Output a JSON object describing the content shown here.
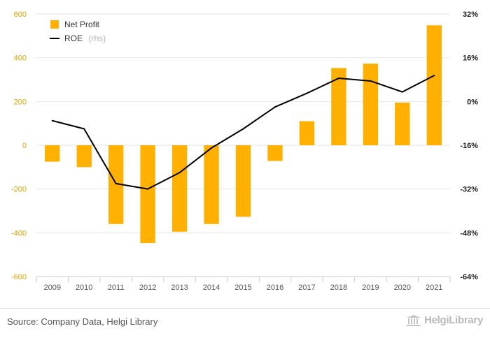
{
  "chart_data": {
    "type": "bar",
    "categories": [
      "2009",
      "2010",
      "2011",
      "2012",
      "2013",
      "2014",
      "2015",
      "2016",
      "2017",
      "2018",
      "2019",
      "2020",
      "2021"
    ],
    "series": [
      {
        "name": "Net Profit",
        "type": "bar",
        "axis": "left",
        "color": "#ffb000",
        "values": [
          -75,
          -100,
          -360,
          -447,
          -395,
          -360,
          -327,
          -72,
          110,
          353,
          373,
          195,
          548
        ]
      },
      {
        "name": "ROE",
        "name_suffix": "(rhs)",
        "type": "line",
        "axis": "right",
        "color": "#000000",
        "values": [
          -7,
          -10,
          -30,
          -32,
          -26,
          -17,
          -10,
          -2,
          3,
          8.5,
          7.5,
          3.5,
          9.5
        ]
      }
    ],
    "y_left": {
      "ylim": [
        -600,
        600
      ],
      "ticks": [
        -600,
        -400,
        -200,
        0,
        200,
        400,
        600
      ],
      "tick_labels": [
        "-600",
        "-400",
        "-200",
        "0",
        "200",
        "400",
        "600"
      ]
    },
    "y_right": {
      "ylim": [
        -64,
        32
      ],
      "ticks": [
        -64,
        -48,
        -32,
        -16,
        0,
        16,
        32
      ],
      "tick_labels": [
        "-64%",
        "-48%",
        "-32%",
        "-16%",
        "0%",
        "16%",
        "32%"
      ]
    },
    "title": "",
    "xlabel": "",
    "ylabel": "",
    "grid": true,
    "legend": "top-left"
  },
  "footer": {
    "source": "Source: Company Data, Helgi Library",
    "brand": "HelgiLibrary",
    "brand_icon": "library-building-icon"
  }
}
